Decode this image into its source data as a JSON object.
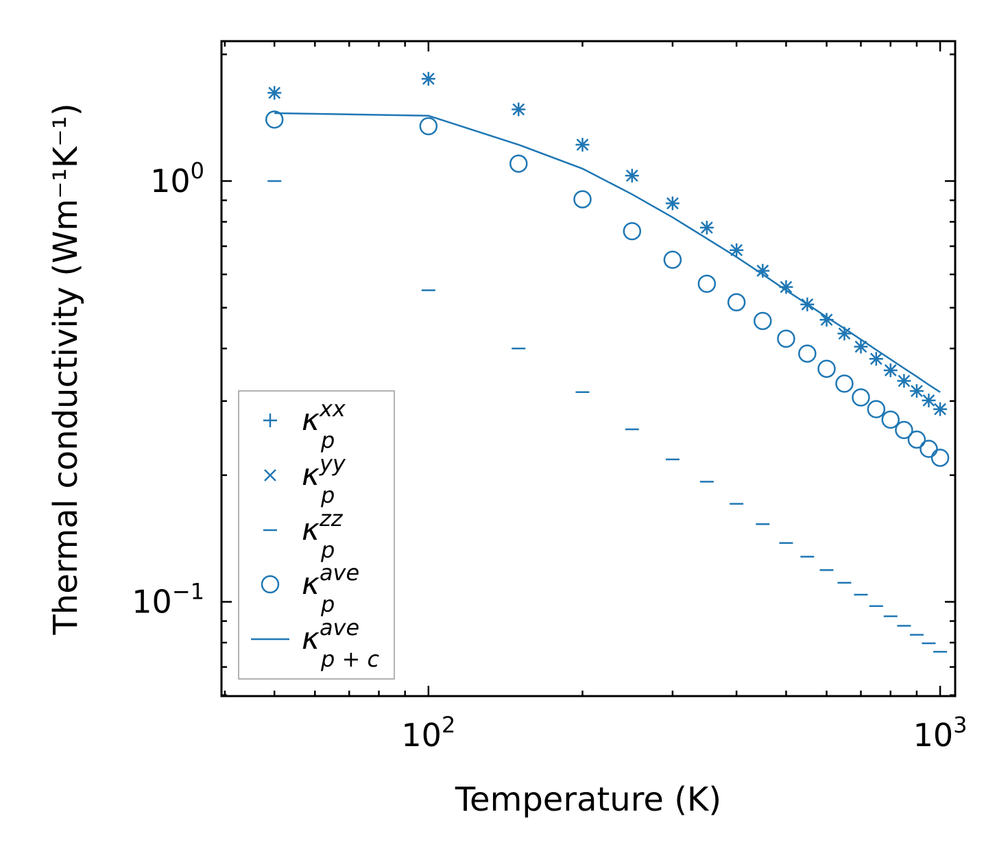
{
  "colors": {
    "series": "#1f77b4",
    "axes": "#000000",
    "legend_border": "#999999"
  },
  "chart_data": {
    "type": "scatter",
    "title": "",
    "xlabel": "Temperature (K)",
    "ylabel": "Thermal conductivity (Wm⁻¹K⁻¹)",
    "xscale": "log",
    "yscale": "log",
    "xlim": [
      39.4,
      1070
    ],
    "ylim": [
      0.0597,
      2.15
    ],
    "x_ticks": [
      {
        "value": 100,
        "base": "10",
        "exp": "2"
      },
      {
        "value": 1000,
        "base": "10",
        "exp": "3"
      }
    ],
    "y_ticks": [
      {
        "value": 0.1,
        "base": "10",
        "exp": "−1"
      },
      {
        "value": 1,
        "base": "10",
        "exp": "0"
      }
    ],
    "x": [
      50,
      100,
      150,
      200,
      250,
      300,
      350,
      400,
      450,
      500,
      550,
      600,
      650,
      700,
      750,
      800,
      850,
      900,
      950,
      1000
    ],
    "series": [
      {
        "name": "κ_p^xx",
        "marker": "plus",
        "values": [
          1.62,
          1.75,
          1.48,
          1.22,
          1.03,
          0.885,
          0.775,
          0.685,
          0.612,
          0.56,
          0.509,
          0.468,
          0.434,
          0.404,
          0.378,
          0.355,
          0.335,
          0.317,
          0.301,
          0.287
        ]
      },
      {
        "name": "κ_p^yy",
        "marker": "x",
        "values": [
          1.62,
          1.75,
          1.48,
          1.22,
          1.03,
          0.885,
          0.775,
          0.685,
          0.612,
          0.56,
          0.509,
          0.468,
          0.434,
          0.404,
          0.378,
          0.355,
          0.335,
          0.317,
          0.301,
          0.287
        ]
      },
      {
        "name": "κ_p^zz",
        "marker": "hline",
        "values": [
          1.0,
          0.55,
          0.4,
          0.315,
          0.257,
          0.218,
          0.193,
          0.171,
          0.153,
          0.138,
          0.128,
          0.119,
          0.111,
          0.104,
          0.0977,
          0.0924,
          0.0877,
          0.0835,
          0.0797,
          0.0761
        ]
      },
      {
        "name": "κ_p^ave",
        "marker": "circle",
        "values": [
          1.4,
          1.35,
          1.1,
          0.905,
          0.76,
          0.65,
          0.57,
          0.515,
          0.465,
          0.422,
          0.389,
          0.358,
          0.33,
          0.306,
          0.287,
          0.271,
          0.256,
          0.243,
          0.231,
          0.22
        ]
      },
      {
        "name": "κ_{p+c}^ave",
        "marker": "line",
        "values": [
          1.45,
          1.43,
          1.22,
          1.07,
          0.93,
          0.82,
          0.73,
          0.66,
          0.6,
          0.55,
          0.51,
          0.475,
          0.446,
          0.42,
          0.397,
          0.377,
          0.359,
          0.343,
          0.328,
          0.315
        ]
      }
    ],
    "legend": {
      "position": "lower-left",
      "entries": [
        {
          "symbol": "plus",
          "base": "κ",
          "sup": "xx",
          "sub": "p"
        },
        {
          "symbol": "x",
          "base": "κ",
          "sup": "yy",
          "sub": "p"
        },
        {
          "symbol": "hline",
          "base": "κ",
          "sup": "zz",
          "sub": "p"
        },
        {
          "symbol": "circle",
          "base": "κ",
          "sup": "ave",
          "sub": "p"
        },
        {
          "symbol": "line",
          "base": "κ",
          "sup": "ave",
          "sub": "p + c"
        }
      ]
    },
    "grid": false
  }
}
